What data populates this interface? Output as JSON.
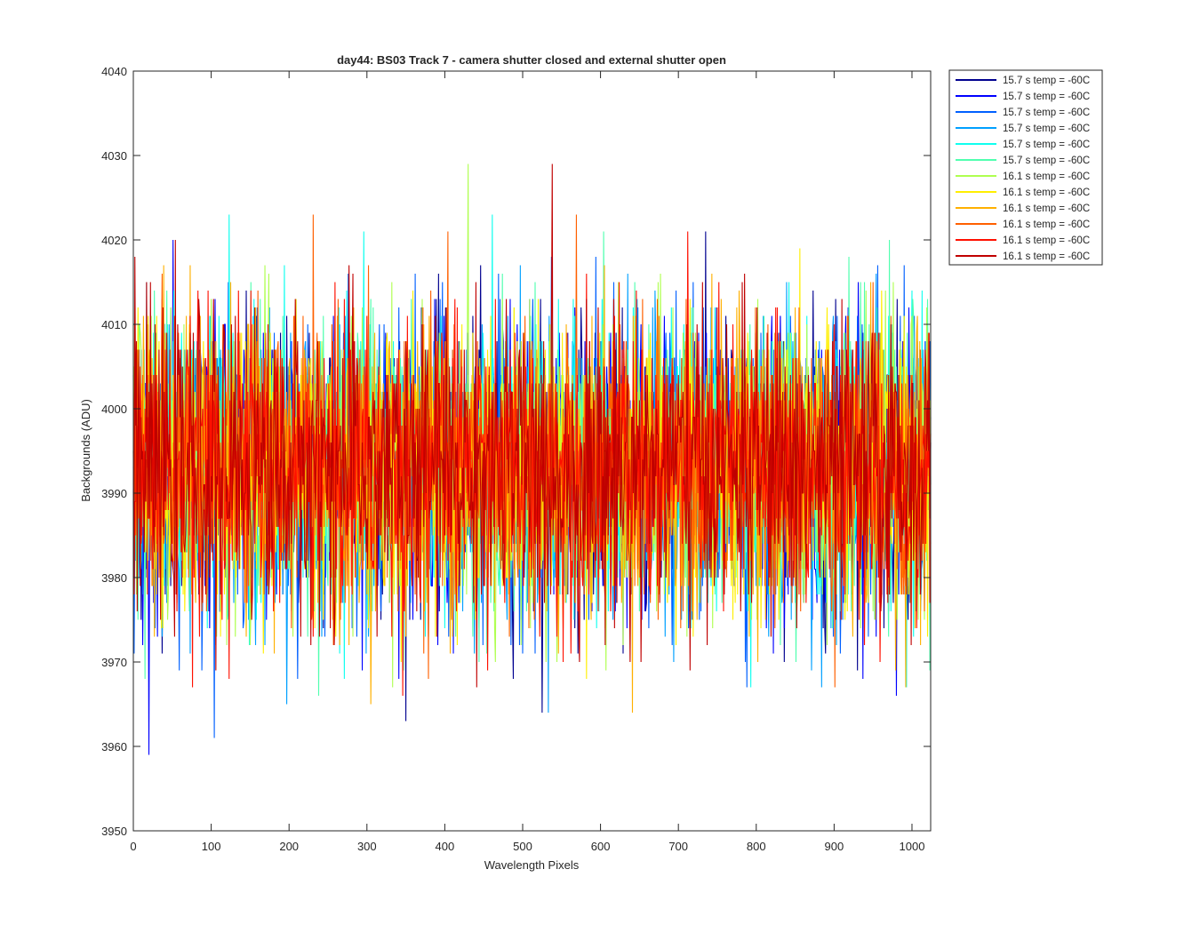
{
  "chart_data": {
    "type": "line",
    "title": "day44: BS03  Track 7 - camera shutter closed and external shutter open",
    "xlabel": "Wavelength Pixels",
    "ylabel": "Backgrounds (ADU)",
    "xlim": [
      0,
      1024
    ],
    "ylim": [
      3950,
      4040
    ],
    "xticks": [
      0,
      100,
      200,
      300,
      400,
      500,
      600,
      700,
      800,
      900,
      1000
    ],
    "yticks": [
      3950,
      3960,
      3970,
      3980,
      3990,
      4000,
      4010,
      4020,
      4030,
      4040
    ],
    "grid": false,
    "legend_position": "outside-top-right",
    "noise_mean": 3993,
    "noise_spread": 8.5,
    "series": [
      {
        "name": "15.7 s temp = -60C",
        "color": "#00008f"
      },
      {
        "name": "15.7 s temp = -60C",
        "color": "#0000ff"
      },
      {
        "name": "15.7 s temp = -60C",
        "color": "#0060ff"
      },
      {
        "name": "15.7 s temp = -60C",
        "color": "#00a0ff"
      },
      {
        "name": "15.7 s temp = -60C",
        "color": "#10ffef"
      },
      {
        "name": "15.7 s temp = -60C",
        "color": "#50ffaf"
      },
      {
        "name": "16.1 s temp = -60C",
        "color": "#afff50"
      },
      {
        "name": "16.1 s temp = -60C",
        "color": "#ffef00"
      },
      {
        "name": "16.1 s temp = -60C",
        "color": "#ffb000"
      },
      {
        "name": "16.1 s temp = -60C",
        "color": "#ff6000"
      },
      {
        "name": "16.1 s temp = -60C",
        "color": "#ff1000"
      },
      {
        "name": "16.1 s temp = -60C",
        "color": "#c00000"
      }
    ]
  }
}
